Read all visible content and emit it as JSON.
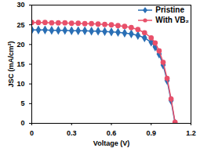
{
  "chart_data": {
    "type": "line",
    "x_label": "Voltage (V)",
    "y_label": "JSC (mA/cm²)",
    "x": [
      0,
      0.05,
      0.1,
      0.15,
      0.2,
      0.25,
      0.3,
      0.35,
      0.4,
      0.45,
      0.5,
      0.55,
      0.6,
      0.65,
      0.7,
      0.75,
      0.8,
      0.85,
      0.9,
      0.93,
      0.96,
      0.99,
      1.02,
      1.05,
      1.08
    ],
    "series": [
      {
        "name": "Pristine",
        "color": "#2a6fb5",
        "marker": "diamond",
        "values": [
          23.7,
          23.7,
          23.7,
          23.6,
          23.6,
          23.6,
          23.5,
          23.5,
          23.5,
          23.4,
          23.4,
          23.3,
          23.2,
          23.1,
          22.9,
          22.7,
          22.3,
          21.7,
          20.6,
          19.4,
          17.6,
          14.8,
          10.9,
          5.8,
          0
        ]
      },
      {
        "name": "With VB₂",
        "color": "#e8506a",
        "marker": "circle",
        "values": [
          25.6,
          25.6,
          25.6,
          25.5,
          25.5,
          25.5,
          25.4,
          25.4,
          25.3,
          25.3,
          25.2,
          25.1,
          25.0,
          24.8,
          24.6,
          24.3,
          23.8,
          23.0,
          21.7,
          20.4,
          18.4,
          15.5,
          11.4,
          6.2,
          0.3
        ]
      }
    ],
    "xlim": [
      0,
      1.2
    ],
    "xticks": [
      0,
      {
        "value": 0.3,
        "label": "0.3"
      },
      {
        "value": 0.6,
        "label": "0.6"
      },
      {
        "value": 0.9,
        "label": "0.9"
      },
      {
        "value": 1.2,
        "label": "1.2"
      }
    ],
    "ylim": [
      0,
      30
    ],
    "yticks": [
      0,
      5,
      10,
      15,
      20,
      25,
      30
    ],
    "legend": "top-right",
    "grid": false
  }
}
